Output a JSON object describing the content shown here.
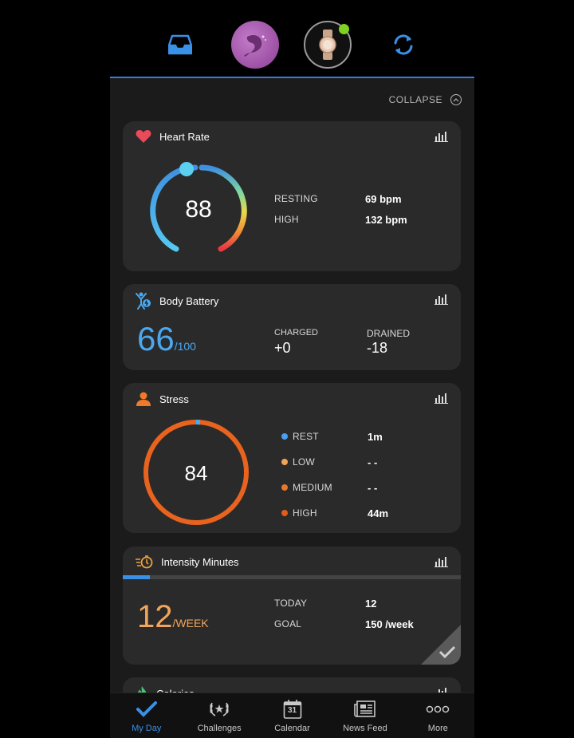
{
  "header": {
    "icons": [
      "inbox-icon",
      "avatar",
      "watch",
      "sync-icon"
    ],
    "accent": "#3a7bd5"
  },
  "collapse": {
    "label": "COLLAPSE"
  },
  "heart_rate": {
    "title": "Heart Rate",
    "current": "88",
    "rows": [
      {
        "label": "RESTING",
        "value": "69 bpm"
      },
      {
        "label": "HIGH",
        "value": "132 bpm"
      }
    ]
  },
  "body_battery": {
    "title": "Body Battery",
    "value": "66",
    "max": "/100",
    "charged_label": "CHARGED",
    "charged_value": "+0",
    "drained_label": "DRAINED",
    "drained_value": "-18"
  },
  "stress": {
    "title": "Stress",
    "current": "84",
    "rows": [
      {
        "label": "REST",
        "value": "1m",
        "color": "#4a9eea"
      },
      {
        "label": "LOW",
        "value": "- -",
        "color": "#f2a55a"
      },
      {
        "label": "MEDIUM",
        "value": "- -",
        "color": "#e8762b"
      },
      {
        "label": "HIGH",
        "value": "44m",
        "color": "#e15d1a"
      }
    ]
  },
  "intensity": {
    "title": "Intensity Minutes",
    "value": "12",
    "unit": "/WEEK",
    "progress": 0.08,
    "rows": [
      {
        "label": "TODAY",
        "value": "12"
      },
      {
        "label": "GOAL",
        "value": "150 /week"
      }
    ]
  },
  "calories": {
    "title": "Calories"
  },
  "nav": {
    "items": [
      {
        "label": "My Day",
        "icon": "check-icon"
      },
      {
        "label": "Challenges",
        "icon": "laurel-icon"
      },
      {
        "label": "Calendar",
        "icon": "calendar-icon",
        "day": "31"
      },
      {
        "label": "News Feed",
        "icon": "newsfeed-icon"
      },
      {
        "label": "More",
        "icon": "more-icon"
      }
    ]
  }
}
